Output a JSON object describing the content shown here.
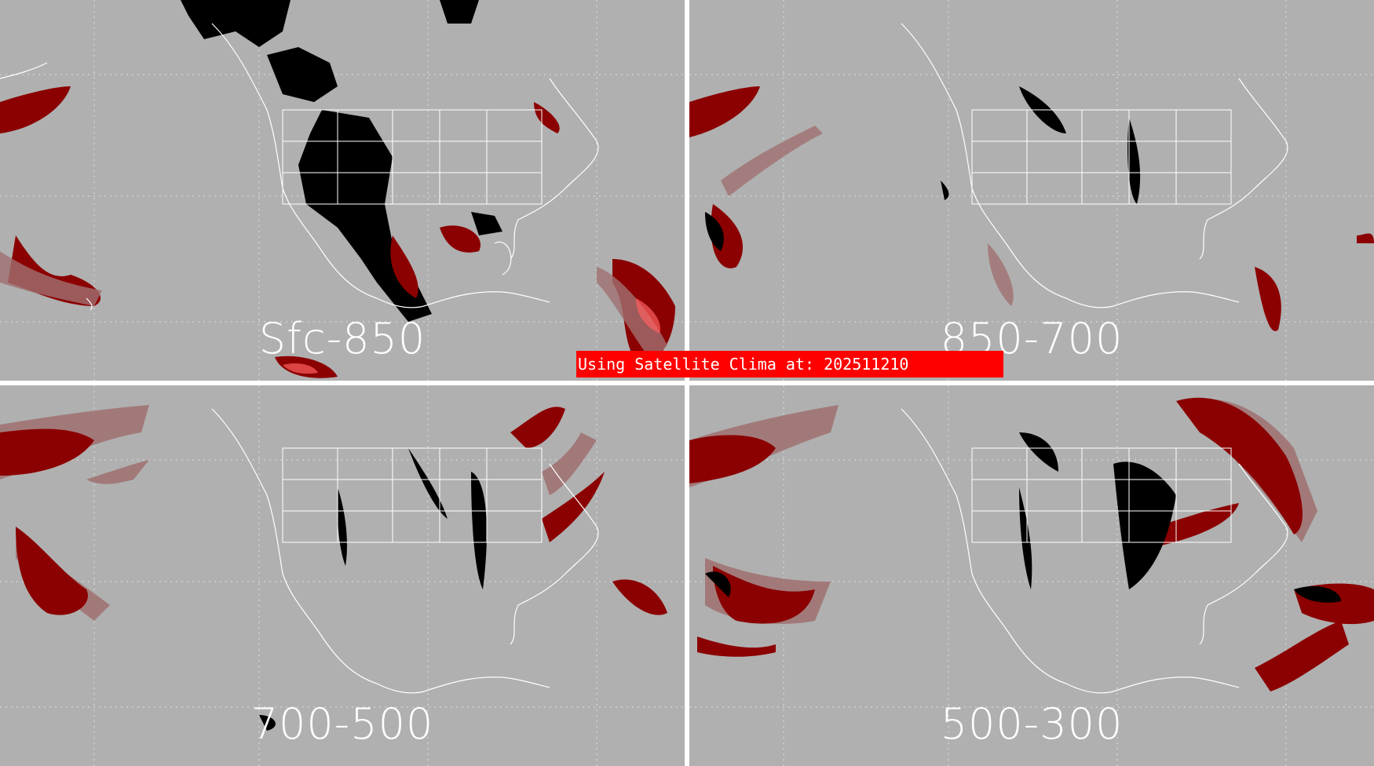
{
  "panels": [
    {
      "id": "tl",
      "label": "Sfc-850"
    },
    {
      "id": "tr",
      "label": "850-700"
    },
    {
      "id": "bl",
      "label": "700-500"
    },
    {
      "id": "br",
      "label": "500-300"
    }
  ],
  "banner": {
    "text": "Using Satellite Clima at: 202511210"
  },
  "colors": {
    "background": "#b0b0b0",
    "divider": "#ffffff",
    "coastline": "#ffffff",
    "dry_black": "#000000",
    "moist_dark_red": "#8b0000",
    "moist_light": "#a07070",
    "moist_bright": "#ff4040",
    "banner": "#ff0000"
  }
}
